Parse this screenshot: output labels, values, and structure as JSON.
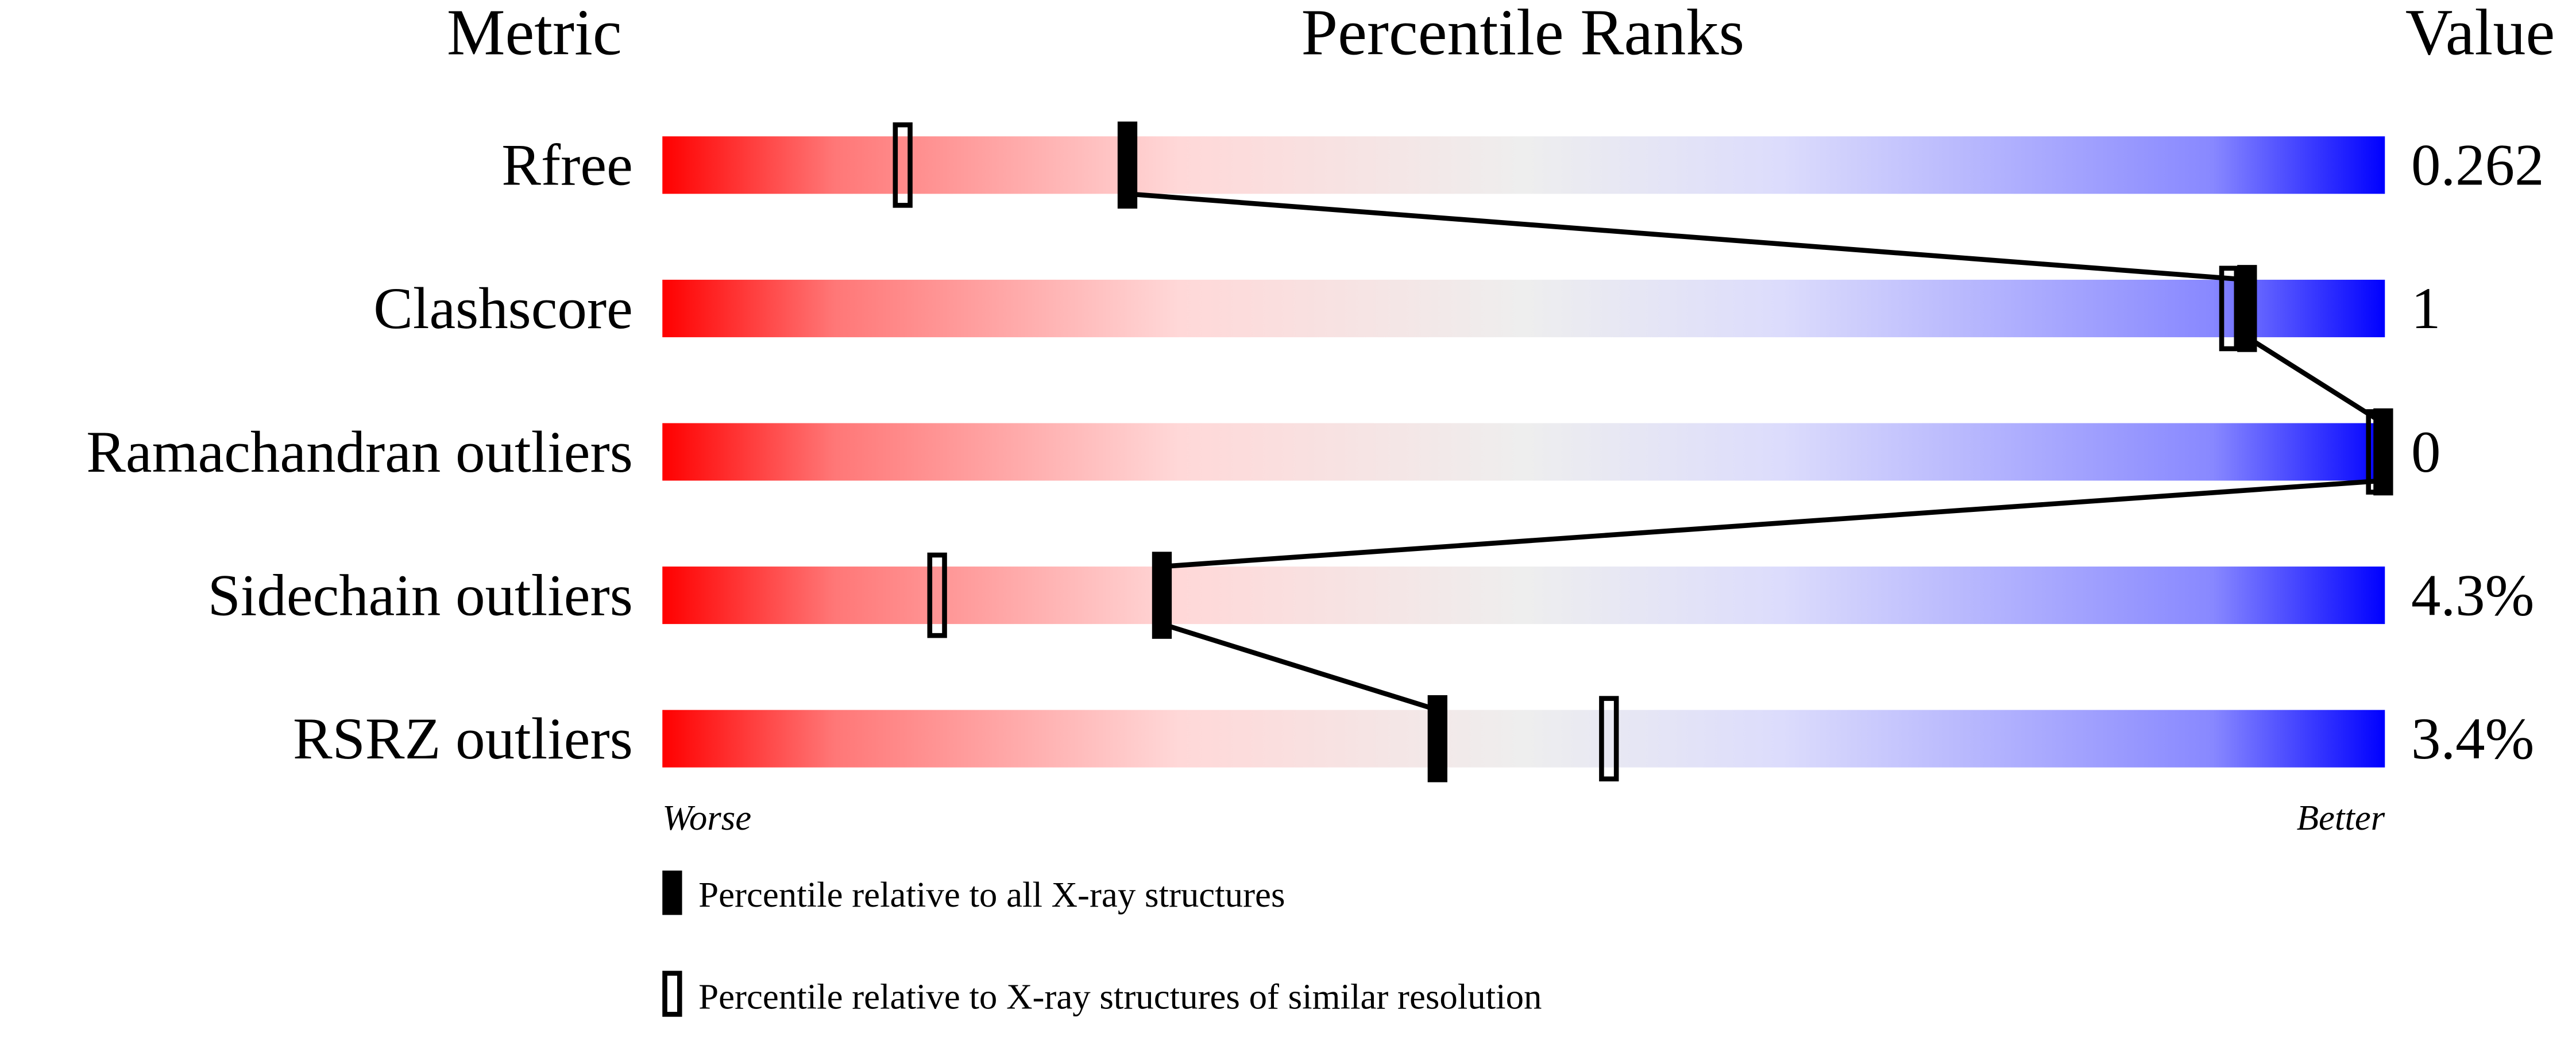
{
  "chart_data": {
    "type": "percentile-slider",
    "headers": {
      "metric": "Metric",
      "ranks": "Percentile Ranks",
      "value": "Value"
    },
    "xlim": [
      0,
      100
    ],
    "axis_labels": {
      "left": "Worse",
      "right": "Better"
    },
    "gradient_colors": [
      "#ff0000",
      "#ff7777",
      "#ffd8d8",
      "#eeeeee",
      "#dcdcfc",
      "#8888ff",
      "#0000ff"
    ],
    "metrics": [
      {
        "name": "Rfree",
        "value": "0.262",
        "percentile_all": 27,
        "percentile_similar": 14
      },
      {
        "name": "Clashscore",
        "value": "1",
        "percentile_all": 92,
        "percentile_similar": 91
      },
      {
        "name": "Ramachandran outliers",
        "value": "0",
        "percentile_all": 100,
        "percentile_similar": 100
      },
      {
        "name": "Sidechain outliers",
        "value": "4.3%",
        "percentile_all": 29,
        "percentile_similar": 16
      },
      {
        "name": "RSRZ outliers",
        "value": "3.4%",
        "percentile_all": 45,
        "percentile_similar": 55
      }
    ],
    "legend": [
      {
        "marker": "filled",
        "label": "Percentile relative to all X-ray structures"
      },
      {
        "marker": "hollow",
        "label": "Percentile relative to X-ray structures of similar resolution"
      }
    ]
  }
}
